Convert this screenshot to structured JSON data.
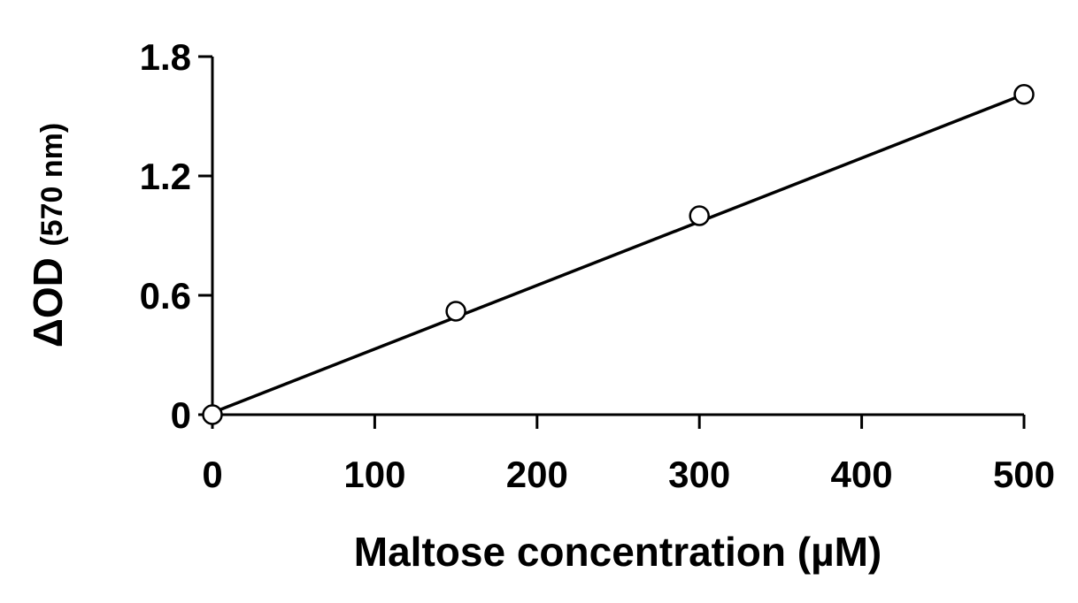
{
  "chart_data": {
    "type": "scatter",
    "title": "",
    "xlabel": "Maltose concentration (µM)",
    "ylabel": {
      "main": "ΔOD",
      "unit": "(570 nm)"
    },
    "xlim": [
      0,
      500
    ],
    "ylim": [
      0,
      1.8
    ],
    "xticks": [
      0,
      100,
      200,
      300,
      400,
      500
    ],
    "yticks": [
      0,
      0.6,
      1.2,
      1.8
    ],
    "xtick_labels": [
      "0",
      "100",
      "200",
      "300",
      "400",
      "500"
    ],
    "ytick_labels": [
      "0",
      "0.6",
      "1.2",
      "1.8"
    ],
    "grid": false,
    "legend": "none",
    "series": [
      {
        "marker": "open-circle",
        "x": [
          0,
          150,
          300,
          500
        ],
        "y": [
          0.0,
          0.52,
          1.0,
          1.61
        ]
      }
    ],
    "fit_line": {
      "x": [
        0,
        500
      ],
      "y": [
        0.01,
        1.61
      ]
    },
    "colors": {
      "axis": "#000000",
      "marker_fill": "#ffffff",
      "line": "#000000"
    }
  }
}
